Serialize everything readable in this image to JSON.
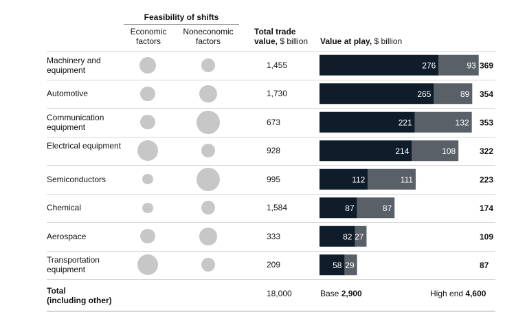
{
  "header": {
    "feasibility_title": "Feasibility of shifts",
    "economic_label": "Economic factors",
    "noneconomic_label": "Noneconomic factors",
    "trade_label_bold": "Total trade",
    "trade_label_rest": "value,",
    "trade_unit": " $ billion",
    "value_label_bold": "Value at play,",
    "value_unit": " $ billion"
  },
  "colors": {
    "dark_segment": "#0f1c2a",
    "grey_segment": "#5a6068",
    "circle": "#c7c7c7"
  },
  "chart_data": {
    "type": "bar",
    "stacked": true,
    "categories": [
      "Machinery and equipment",
      "Automotive",
      "Communication equipment",
      "Electrical equipment",
      "Semiconductors",
      "Chemical",
      "Aerospace",
      "Transportation equipment"
    ],
    "series": [
      {
        "values": [
          276,
          265,
          221,
          214,
          112,
          87,
          82,
          58
        ]
      },
      {
        "values": [
          93,
          89,
          132,
          108,
          111,
          87,
          27,
          29
        ]
      }
    ],
    "totals": [
      369,
      354,
      353,
      322,
      223,
      174,
      109,
      87
    ],
    "trade_values": [
      "1,455",
      "1,730",
      "673",
      "928",
      "995",
      "1,584",
      "333",
      "209"
    ],
    "economic_feasibility_relative": [
      0.72,
      0.62,
      0.62,
      0.88,
      0.45,
      0.45,
      0.62,
      0.88
    ],
    "noneconomic_feasibility_relative": [
      0.6,
      0.75,
      1.0,
      0.6,
      1.0,
      0.6,
      0.75,
      0.6
    ],
    "xlim": [
      0,
      380
    ]
  },
  "total_row": {
    "label_line1": "Total",
    "label_line2": "(including other)",
    "trade_value": "18,000",
    "base_label": "Base",
    "base_value": "2,900",
    "high_label": "High end",
    "high_value": "4,600"
  }
}
